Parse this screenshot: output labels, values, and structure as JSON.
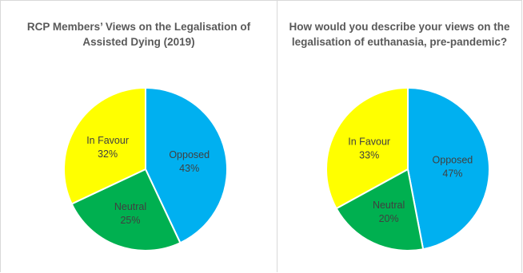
{
  "chart_data": [
    {
      "type": "pie",
      "title_lines": [
        "RCP Members’ Views on the Legalisation of",
        "Assisted Dying (2019)"
      ],
      "slices": [
        {
          "label": "Opposed",
          "value": 43,
          "value_text": "43%",
          "color": "#00B0F0"
        },
        {
          "label": "Neutral",
          "value": 25,
          "value_text": "25%",
          "color": "#00B050"
        },
        {
          "label": "In Favour",
          "value": 32,
          "value_text": "32%",
          "color": "#FFFF00"
        }
      ]
    },
    {
      "type": "pie",
      "title_lines": [
        "How would you describe your views on the",
        "legalisation of euthanasia, pre-pandemic?"
      ],
      "slices": [
        {
          "label": "Opposed",
          "value": 47,
          "value_text": "47%",
          "color": "#00B0F0"
        },
        {
          "label": "Neutral",
          "value": 20,
          "value_text": "20%",
          "color": "#00B050"
        },
        {
          "label": "In Favour",
          "value": 33,
          "value_text": "33%",
          "color": "#FFFF00"
        }
      ]
    }
  ]
}
